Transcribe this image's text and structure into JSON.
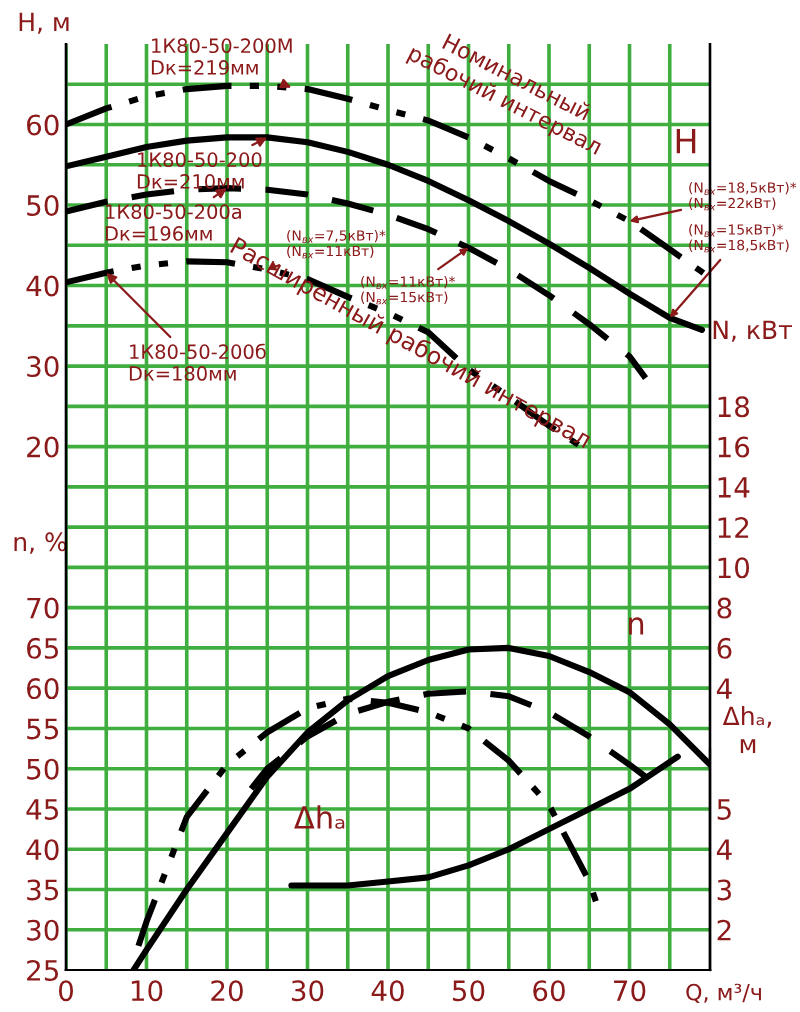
{
  "chart_data": [
    {
      "type": "line",
      "xlabel": "Q, м³/ч",
      "ylabel": "H, м",
      "y2label": "N, кВт",
      "y3label": "n, %",
      "xlim": [
        0,
        80
      ],
      "xticks": [
        0,
        {
          "value": 5,
          "label": null
        },
        10,
        {
          "value": 15,
          "label": null
        },
        20,
        {
          "value": 25,
          "label": null
        },
        30,
        {
          "value": 35,
          "label": null
        },
        40,
        {
          "value": 45,
          "label": null
        },
        50,
        {
          "value": 55,
          "label": null
        },
        60,
        {
          "value": 65,
          "label": null
        },
        70,
        {
          "value": 75,
          "label": null
        }
      ],
      "ylim": [
        -45,
        70
      ],
      "yticks": [
        {
          "value": -40,
          "label": null
        },
        {
          "value": -35,
          "label": null
        },
        {
          "value": -30,
          "label": null
        },
        {
          "value": -25,
          "label": null
        },
        {
          "value": -20,
          "label": null
        },
        {
          "value": -15,
          "label": null
        },
        {
          "value": -10,
          "label": null
        },
        {
          "value": -5,
          "label": null
        },
        {
          "value": 0,
          "label": null
        },
        {
          "value": 5,
          "label": null
        },
        {
          "value": 10,
          "label": null
        },
        {
          "value": 15,
          "label": null
        },
        20,
        {
          "value": 25,
          "label": null
        },
        30,
        {
          "value": 35,
          "label": null
        },
        40,
        {
          "value": 45,
          "label": null
        },
        50,
        {
          "value": 55,
          "label": null
        },
        60,
        {
          "value": 65,
          "label": null
        }
      ],
      "y2lim": [
        -10,
        36
      ],
      "y2ticks": [
        4,
        6,
        8,
        10,
        12,
        14,
        16,
        18
      ],
      "y3lim": [
        25,
        140
      ],
      "y3ticks": [
        25,
        30,
        35,
        40,
        45,
        50,
        55,
        60,
        65,
        70
      ],
      "grid": true,
      "legend": false,
      "series": [
        {
          "color": "#000000",
          "line_style": "dashdot",
          "axis": "y",
          "x": [
            0,
            5,
            10,
            15,
            20,
            25,
            30,
            35,
            40,
            45,
            50,
            55,
            60,
            65,
            70,
            75,
            80
          ],
          "values": [
            60,
            62,
            63.5,
            64.4,
            64.8,
            64.8,
            64.4,
            63.2,
            61.8,
            60.5,
            58.4,
            55.8,
            53,
            50.6,
            48,
            44.5,
            41
          ]
        },
        {
          "color": "#000000",
          "line_style": "solid",
          "axis": "y",
          "x": [
            0,
            5,
            10,
            15,
            20,
            25,
            30,
            35,
            40,
            45,
            50,
            55,
            60,
            65,
            70,
            75,
            79
          ],
          "values": [
            54.8,
            56,
            57.2,
            58,
            58.4,
            58.4,
            57.8,
            56.6,
            55,
            53,
            50.6,
            48,
            45.2,
            42.2,
            39,
            36,
            34.5
          ]
        },
        {
          "color": "#000000",
          "line_style": "dashed",
          "axis": "y",
          "x": [
            0,
            5,
            10,
            15,
            20,
            25,
            30,
            35,
            40,
            45,
            50,
            55,
            60,
            65,
            70,
            72
          ],
          "values": [
            49.2,
            50.4,
            51.3,
            51.9,
            52.1,
            51.9,
            51.3,
            50.2,
            48.8,
            47,
            44.7,
            42,
            38.8,
            35.2,
            31.2,
            28.5
          ]
        },
        {
          "color": "#000000",
          "line_style": "dashdot",
          "axis": "y",
          "x": [
            0,
            5,
            10,
            15,
            20,
            25,
            30,
            35,
            40,
            45,
            50,
            55,
            60,
            64
          ],
          "values": [
            40.4,
            41.6,
            42.5,
            43,
            42.9,
            42,
            40.8,
            38.6,
            36.6,
            34.2,
            29.6,
            26.2,
            22.6,
            20
          ]
        },
        {
          "color": "#000000",
          "line_style": "solid",
          "axis": "y3",
          "x": [
            8.4,
            10,
            15,
            20,
            25,
            30,
            35,
            40,
            45,
            50,
            55,
            60,
            65,
            70,
            75,
            80
          ],
          "values": [
            25,
            27.5,
            35,
            42,
            49,
            54.5,
            58.5,
            61.5,
            63.5,
            64.8,
            65,
            64,
            62,
            59.5,
            55.5,
            50.5
          ]
        },
        {
          "color": "#000000",
          "line_style": "dashed",
          "axis": "y3",
          "x": [
            23,
            25,
            30,
            35,
            40,
            45,
            50,
            55,
            60,
            65,
            70,
            72
          ],
          "values": [
            47.5,
            50,
            54,
            56.8,
            58.3,
            59.3,
            59.6,
            59,
            57,
            54,
            50.5,
            49
          ]
        },
        {
          "color": "#000000",
          "line_style": "dashdot",
          "axis": "y3",
          "x": [
            9,
            10,
            15,
            20,
            25,
            30,
            35,
            40,
            45,
            50,
            55,
            60,
            65,
            66
          ],
          "values": [
            28,
            31,
            44,
            50.5,
            54.5,
            57.5,
            58.7,
            58.2,
            57,
            55,
            51,
            45.5,
            36,
            33
          ]
        }
      ],
      "annotations": [
        {
          "text": "1К80-50-200М\nDк=219мм",
          "x": 28,
          "y": 64.6
        },
        {
          "text": "1К80-50-200\nDк=210мм",
          "x": 25,
          "y": 58.4
        },
        {
          "text": "1К80-50-200а\nDк=196мм",
          "x": 20,
          "y": 52.1
        },
        {
          "text": "1К80-50-200б\nDк=180мм",
          "x": 5,
          "y": 41.6
        },
        {
          "text": "(N$_{вх}$=7,5кВт)*\n(N$_{вх}$=11кВт)",
          "x": 25,
          "y": 42
        },
        {
          "text": "(N$_{вх}$=11кВт)*\n(N$_{вх}$=15кВт)",
          "x": 50,
          "y": 44.7
        },
        {
          "text": "(N$_{вх}$=18,5кВт)*\n(N$_{вх}$=22кВт)",
          "x": 70,
          "y": 48
        },
        {
          "text": "(N$_{вх}$=15кВт)*\n(N$_{вх}$=18,5кВт)",
          "x": 75,
          "y": 36
        },
        "Номинальный\nрабочий интервал",
        "Расширенный рабочий интервал",
        "H",
        "n",
        "Δhₐ"
      ]
    },
    {
      "type": "line",
      "ylabel": "Δhₐ,\nм",
      "xlim": [
        0,
        80
      ],
      "ylim": [
        1,
        6.5
      ],
      "yticks": [
        2,
        3,
        4,
        5
      ],
      "tick_labels": "y",
      "legend": false,
      "series": [
        {
          "color": "#000000",
          "line_style": "solid",
          "x": [
            28,
            30,
            35,
            40,
            45,
            50,
            55,
            60,
            65,
            70,
            76
          ],
          "values": [
            3.1,
            3.1,
            3.1,
            3.2,
            3.3,
            3.6,
            4,
            4.5,
            5,
            5.5,
            6.3
          ]
        }
      ]
    }
  ]
}
